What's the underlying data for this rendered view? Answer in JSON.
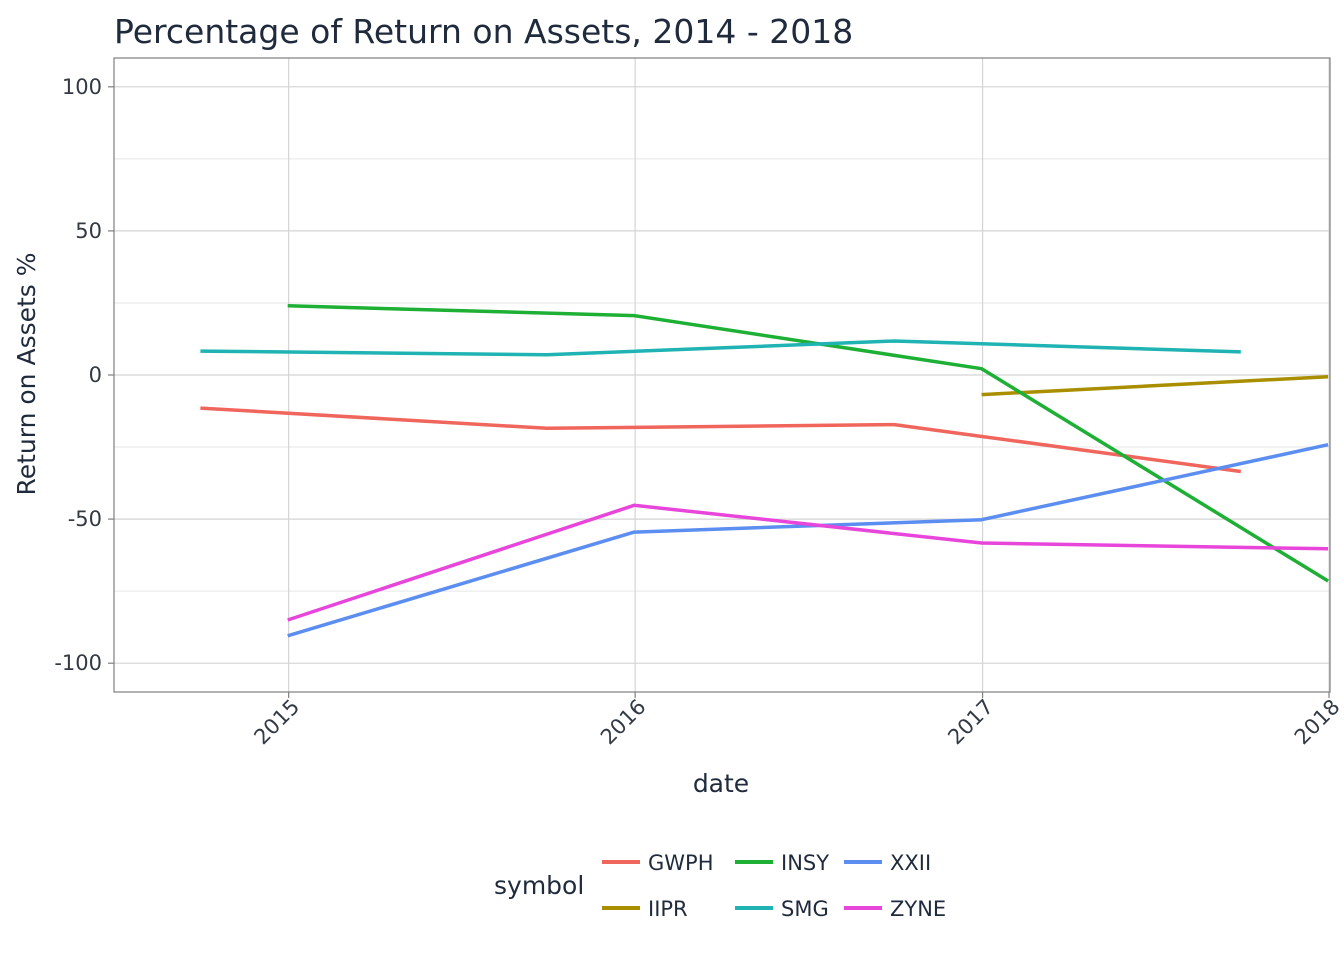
{
  "chart_data": {
    "type": "line",
    "title": "Percentage of Return on Assets, 2014 - 2018",
    "xlabel": "date",
    "ylabel": "Return on Assets %",
    "x_ticks": [
      "2015",
      "2016",
      "2017",
      "2018"
    ],
    "y_ticks": [
      "100",
      "50",
      "0",
      "-50",
      "-100"
    ],
    "xlim": [
      "2014-07-01",
      "2018-01-02"
    ],
    "ylim": [
      -110,
      110
    ],
    "grid": true,
    "legend": {
      "title": "symbol",
      "position": "bottom"
    },
    "series": [
      {
        "name": "GWPH",
        "color": "#F0655C",
        "points": [
          [
            "2014-09-30",
            -11.5
          ],
          [
            "2015-09-30",
            -18.5
          ],
          [
            "2016-09-30",
            -17.2
          ],
          [
            "2017-09-30",
            -33.5
          ]
        ]
      },
      {
        "name": "IIPR",
        "color": "#A98F00",
        "points": [
          [
            "2016-12-31",
            -6.8
          ],
          [
            "2017-12-31",
            -0.6
          ]
        ]
      },
      {
        "name": "INSY",
        "color": "#1EB034",
        "points": [
          [
            "2014-12-31",
            24.0
          ],
          [
            "2015-12-31",
            20.6
          ],
          [
            "2016-12-31",
            2.2
          ],
          [
            "2017-12-31",
            -71.5
          ]
        ]
      },
      {
        "name": "SMG",
        "color": "#1FB3B3",
        "points": [
          [
            "2014-09-30",
            8.3
          ],
          [
            "2015-09-30",
            7.0
          ],
          [
            "2016-09-30",
            11.8
          ],
          [
            "2017-09-30",
            8.0
          ]
        ]
      },
      {
        "name": "XXII",
        "color": "#5B8EF0",
        "points": [
          [
            "2014-12-31",
            -90.5
          ],
          [
            "2015-12-31",
            -54.5
          ],
          [
            "2016-12-31",
            -50.2
          ],
          [
            "2017-12-31",
            -24.2
          ]
        ]
      },
      {
        "name": "ZYNE",
        "color": "#E845DB",
        "points": [
          [
            "2014-12-31",
            -85.0
          ],
          [
            "2015-12-31",
            -45.2
          ],
          [
            "2016-12-31",
            -58.3
          ],
          [
            "2017-12-31",
            -60.3
          ]
        ]
      }
    ]
  }
}
